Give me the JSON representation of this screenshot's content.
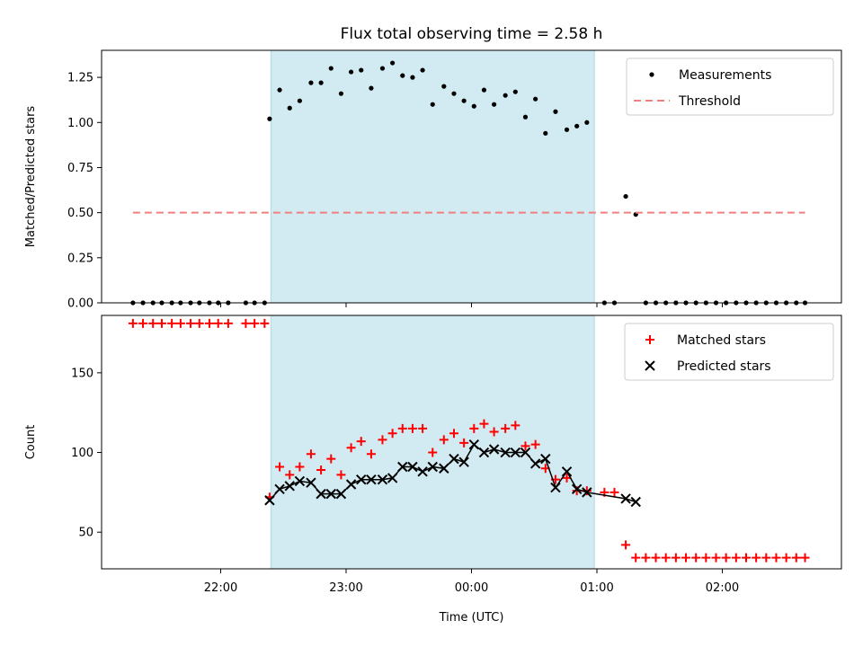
{
  "chart_data": {
    "title": "Flux total observing time = 2.58 h",
    "shared_x": {
      "label": "Time (UTC)",
      "unit": "hours since 00:00 UTC (negative = previous day)",
      "range": [
        -2.95,
        2.95
      ],
      "ticks": [
        -2,
        -1,
        0,
        1,
        2
      ],
      "tick_labels": [
        "22:00",
        "23:00",
        "00:00",
        "01:00",
        "02:00"
      ]
    },
    "shaded_interval": {
      "start": -1.6,
      "end": 0.98,
      "color": "#add8e6"
    },
    "panels": [
      {
        "type": "scatter",
        "ylabel": "Matched/Predicted stars",
        "ylim": [
          0,
          1.4
        ],
        "yticks": [
          0.0,
          0.25,
          0.5,
          0.75,
          1.0,
          1.25
        ],
        "ytick_labels": [
          "0.00",
          "0.25",
          "0.50",
          "0.75",
          "1.00",
          "1.25"
        ],
        "legend": {
          "position": "upper right",
          "entries": [
            {
              "label": "Measurements",
              "marker": "dot",
              "color": "#000000"
            },
            {
              "label": "Threshold",
              "marker": "dashed-line",
              "color": "#f08080"
            }
          ]
        },
        "series": [
          {
            "name": "Measurements",
            "marker": "dot",
            "color": "#000000",
            "points": [
              [
                -2.7,
                0
              ],
              [
                -2.62,
                0
              ],
              [
                -2.54,
                0
              ],
              [
                -2.47,
                0
              ],
              [
                -2.39,
                0
              ],
              [
                -2.32,
                0
              ],
              [
                -2.24,
                0
              ],
              [
                -2.17,
                0
              ],
              [
                -2.09,
                0
              ],
              [
                -2.02,
                0
              ],
              [
                -1.94,
                0
              ],
              [
                -1.8,
                0
              ],
              [
                -1.73,
                0
              ],
              [
                -1.65,
                0
              ],
              [
                -1.61,
                1.02
              ],
              [
                -1.53,
                1.18
              ],
              [
                -1.45,
                1.08
              ],
              [
                -1.37,
                1.12
              ],
              [
                -1.28,
                1.22
              ],
              [
                -1.2,
                1.22
              ],
              [
                -1.12,
                1.3
              ],
              [
                -1.04,
                1.16
              ],
              [
                -0.96,
                1.28
              ],
              [
                -0.88,
                1.29
              ],
              [
                -0.8,
                1.19
              ],
              [
                -0.71,
                1.3
              ],
              [
                -0.63,
                1.33
              ],
              [
                -0.55,
                1.26
              ],
              [
                -0.47,
                1.25
              ],
              [
                -0.39,
                1.29
              ],
              [
                -0.31,
                1.1
              ],
              [
                -0.22,
                1.2
              ],
              [
                -0.14,
                1.16
              ],
              [
                -0.06,
                1.12
              ],
              [
                0.02,
                1.09
              ],
              [
                0.1,
                1.18
              ],
              [
                0.18,
                1.1
              ],
              [
                0.27,
                1.15
              ],
              [
                0.35,
                1.17
              ],
              [
                0.43,
                1.03
              ],
              [
                0.51,
                1.13
              ],
              [
                0.59,
                0.94
              ],
              [
                0.67,
                1.06
              ],
              [
                0.76,
                0.96
              ],
              [
                0.84,
                0.98
              ],
              [
                0.92,
                1.0
              ],
              [
                1.06,
                0
              ],
              [
                1.14,
                0
              ],
              [
                1.23,
                0.59
              ],
              [
                1.31,
                0.49
              ],
              [
                1.39,
                0
              ],
              [
                1.47,
                0
              ],
              [
                1.55,
                0
              ],
              [
                1.63,
                0
              ],
              [
                1.71,
                0
              ],
              [
                1.79,
                0
              ],
              [
                1.87,
                0
              ],
              [
                1.95,
                0
              ],
              [
                2.03,
                0
              ],
              [
                2.11,
                0
              ],
              [
                2.19,
                0
              ],
              [
                2.27,
                0
              ],
              [
                2.35,
                0
              ],
              [
                2.43,
                0
              ],
              [
                2.51,
                0
              ],
              [
                2.59,
                0
              ],
              [
                2.66,
                0
              ]
            ]
          },
          {
            "name": "Threshold",
            "style": "dashed",
            "color": "#f08080",
            "points": [
              [
                -2.7,
                0.5
              ],
              [
                2.66,
                0.5
              ]
            ]
          }
        ]
      },
      {
        "type": "scatter",
        "ylabel": "Count",
        "ylim": [
          27,
          186
        ],
        "yticks": [
          50,
          100,
          150
        ],
        "ytick_labels": [
          "50",
          "100",
          "150"
        ],
        "legend": {
          "position": "upper right",
          "entries": [
            {
              "label": "Matched stars",
              "marker": "plus",
              "color": "#ff0000"
            },
            {
              "label": "Predicted stars",
              "marker": "x",
              "color": "#000000"
            }
          ]
        },
        "series": [
          {
            "name": "Matched stars",
            "marker": "plus",
            "color": "#ff0000",
            "points": [
              [
                -2.7,
                181
              ],
              [
                -2.62,
                181
              ],
              [
                -2.54,
                181
              ],
              [
                -2.47,
                181
              ],
              [
                -2.39,
                181
              ],
              [
                -2.32,
                181
              ],
              [
                -2.24,
                181
              ],
              [
                -2.17,
                181
              ],
              [
                -2.09,
                181
              ],
              [
                -2.02,
                181
              ],
              [
                -1.94,
                181
              ],
              [
                -1.8,
                181
              ],
              [
                -1.73,
                181
              ],
              [
                -1.65,
                181
              ],
              [
                -1.61,
                72
              ],
              [
                -1.53,
                91
              ],
              [
                -1.45,
                86
              ],
              [
                -1.37,
                91
              ],
              [
                -1.28,
                99
              ],
              [
                -1.2,
                89
              ],
              [
                -1.12,
                96
              ],
              [
                -1.04,
                86
              ],
              [
                -0.96,
                103
              ],
              [
                -0.88,
                107
              ],
              [
                -0.8,
                99
              ],
              [
                -0.71,
                108
              ],
              [
                -0.63,
                112
              ],
              [
                -0.55,
                115
              ],
              [
                -0.47,
                115
              ],
              [
                -0.39,
                115
              ],
              [
                -0.31,
                100
              ],
              [
                -0.22,
                108
              ],
              [
                -0.14,
                112
              ],
              [
                -0.06,
                106
              ],
              [
                0.02,
                115
              ],
              [
                0.1,
                118
              ],
              [
                0.18,
                113
              ],
              [
                0.27,
                115
              ],
              [
                0.35,
                117
              ],
              [
                0.43,
                104
              ],
              [
                0.51,
                105
              ],
              [
                0.59,
                90
              ],
              [
                0.67,
                83
              ],
              [
                0.76,
                84
              ],
              [
                0.84,
                76
              ],
              [
                0.92,
                76
              ],
              [
                1.06,
                75
              ],
              [
                1.14,
                75
              ],
              [
                1.23,
                42
              ],
              [
                1.31,
                34
              ],
              [
                1.39,
                34
              ],
              [
                1.47,
                34
              ],
              [
                1.55,
                34
              ],
              [
                1.63,
                34
              ],
              [
                1.71,
                34
              ],
              [
                1.79,
                34
              ],
              [
                1.87,
                34
              ],
              [
                1.95,
                34
              ],
              [
                2.03,
                34
              ],
              [
                2.11,
                34
              ],
              [
                2.19,
                34
              ],
              [
                2.27,
                34
              ],
              [
                2.35,
                34
              ],
              [
                2.43,
                34
              ],
              [
                2.51,
                34
              ],
              [
                2.59,
                34
              ],
              [
                2.66,
                34
              ]
            ]
          },
          {
            "name": "Predicted stars",
            "marker": "x",
            "color": "#000000",
            "connect": true,
            "points": [
              [
                -1.61,
                70
              ],
              [
                -1.53,
                77
              ],
              [
                -1.45,
                79
              ],
              [
                -1.37,
                82
              ],
              [
                -1.28,
                81
              ],
              [
                -1.2,
                74
              ],
              [
                -1.12,
                74
              ],
              [
                -1.04,
                74
              ],
              [
                -0.96,
                80
              ],
              [
                -0.88,
                83
              ],
              [
                -0.8,
                83
              ],
              [
                -0.71,
                83
              ],
              [
                -0.63,
                84
              ],
              [
                -0.55,
                91
              ],
              [
                -0.47,
                91
              ],
              [
                -0.39,
                88
              ],
              [
                -0.31,
                91
              ],
              [
                -0.22,
                90
              ],
              [
                -0.14,
                96
              ],
              [
                -0.06,
                94
              ],
              [
                0.02,
                105
              ],
              [
                0.1,
                100
              ],
              [
                0.18,
                102
              ],
              [
                0.27,
                100
              ],
              [
                0.35,
                100
              ],
              [
                0.43,
                100
              ],
              [
                0.51,
                93
              ],
              [
                0.59,
                96
              ],
              [
                0.67,
                78
              ],
              [
                0.76,
                88
              ],
              [
                0.84,
                77
              ],
              [
                0.92,
                75
              ],
              [
                1.23,
                71
              ],
              [
                1.31,
                69
              ]
            ]
          }
        ]
      }
    ]
  }
}
